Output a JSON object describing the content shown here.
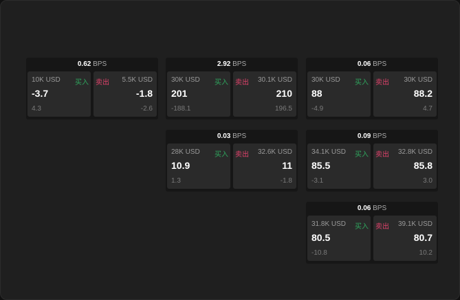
{
  "colors": {
    "buy": "#2fa55d",
    "sell": "#e0426b"
  },
  "buy_label": "买入",
  "sell_label": "卖出",
  "unit": "BPS",
  "quotes": [
    {
      "spread": "0.62",
      "bid": {
        "size": "10K USD",
        "price": "-3.7",
        "change": "4.3"
      },
      "ask": {
        "size": "5.5K USD",
        "price": "-1.8",
        "change": "-2.6"
      }
    },
    {
      "spread": "2.92",
      "bid": {
        "size": "30K USD",
        "price": "201",
        "change": "-188.1"
      },
      "ask": {
        "size": "30.1K USD",
        "price": "210",
        "change": "196.5"
      }
    },
    {
      "spread": "0.06",
      "bid": {
        "size": "30K USD",
        "price": "88",
        "change": "-4.9"
      },
      "ask": {
        "size": "30K USD",
        "price": "88.2",
        "change": "4.7"
      }
    },
    {
      "spread": "0.03",
      "bid": {
        "size": "28K USD",
        "price": "10.9",
        "change": "1.3"
      },
      "ask": {
        "size": "32.6K USD",
        "price": "11",
        "change": "-1.8"
      }
    },
    {
      "spread": "0.09",
      "bid": {
        "size": "34.1K USD",
        "price": "85.5",
        "change": "-3.1"
      },
      "ask": {
        "size": "32.8K USD",
        "price": "85.8",
        "change": "3.0"
      }
    },
    {
      "spread": "0.06",
      "bid": {
        "size": "31.8K USD",
        "price": "80.5",
        "change": "-10.8"
      },
      "ask": {
        "size": "39.1K USD",
        "price": "80.7",
        "change": "10.2"
      }
    }
  ]
}
